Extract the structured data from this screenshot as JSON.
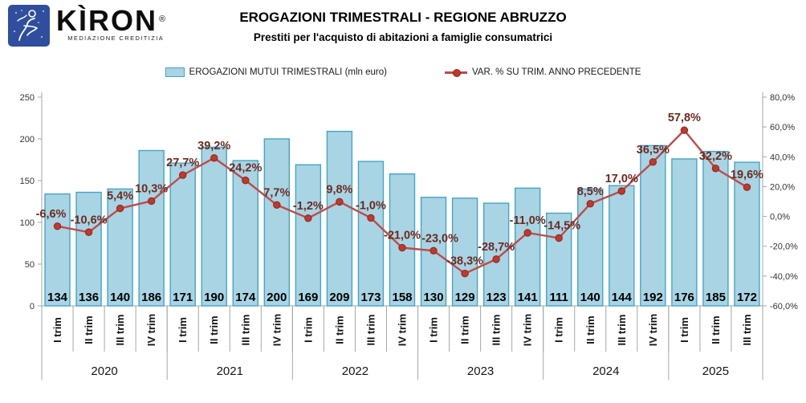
{
  "logo": {
    "brand": "KÌRON",
    "registered": "®",
    "tagline": "MEDIAZIONE CREDITIZIA"
  },
  "header": {
    "title": "EROGAZIONI TRIMESTRALI - REGIONE ABRUZZO",
    "subtitle": "Prestiti per l'acquisto di abitazioni a famiglie consumatrici"
  },
  "legend": {
    "bars_label": "EROGAZIONI MUTUI TRIMESTRALI (mln euro)",
    "line_label": "VAR. % SU TRIM. ANNO PRECEDENTE"
  },
  "chart_data": {
    "type": "bar",
    "subtype": "combo bar+line, dual axis",
    "quarter_labels": [
      "I trim",
      "II trim",
      "III trim",
      "IV trim",
      "I trim",
      "II trim",
      "III trim",
      "IV trim",
      "I trim",
      "II trim",
      "III trim",
      "IV trim",
      "I trim",
      "II trim",
      "III trim",
      "IV trim",
      "I trim",
      "II trim",
      "III trim",
      "IV trim",
      "I trim",
      "II trim",
      "III trim"
    ],
    "year_groups": [
      {
        "label": "2020",
        "count": 4
      },
      {
        "label": "2021",
        "count": 4
      },
      {
        "label": "2022",
        "count": 4
      },
      {
        "label": "2023",
        "count": 4
      },
      {
        "label": "2024",
        "count": 4
      },
      {
        "label": "2025",
        "count": 3
      }
    ],
    "series": [
      {
        "name": "EROGAZIONI MUTUI TRIMESTRALI (mln euro)",
        "type": "bar",
        "axis": "left",
        "values": [
          134,
          136,
          140,
          186,
          171,
          190,
          174,
          200,
          169,
          209,
          173,
          158,
          130,
          129,
          123,
          141,
          111,
          140,
          144,
          192,
          176,
          185,
          172
        ]
      },
      {
        "name": "VAR. % SU TRIM. ANNO PRECEDENTE",
        "type": "line",
        "axis": "right",
        "values": [
          -6.6,
          -10.6,
          5.4,
          10.3,
          27.7,
          39.2,
          24.2,
          7.7,
          -1.2,
          9.8,
          -1.0,
          -21.0,
          -23.0,
          -38.3,
          -28.7,
          -11.0,
          -14.5,
          8.5,
          17.0,
          36.5,
          57.8,
          32.2,
          19.6
        ],
        "value_labels": [
          "-6,6%",
          "-10,6%",
          "5,4%",
          "10,3%",
          "27,7%",
          "39,2%",
          "24,2%",
          "7,7%",
          "-1,2%",
          "9,8%",
          "-1,0%",
          "-21,0%",
          "-23,0%",
          "-38,3%",
          "-28,7%",
          "-11,0%",
          "-14,5%",
          "8,5%",
          "17,0%",
          "36,5%",
          "57,8%",
          "32,2%",
          "19,6%"
        ]
      }
    ],
    "left_axis": {
      "min": 0,
      "max": 250,
      "step": 50,
      "tick_labels": [
        "0",
        "50",
        "100",
        "150",
        "200",
        "250"
      ]
    },
    "right_axis": {
      "min": -60,
      "max": 80,
      "step": 20,
      "tick_labels": [
        "-60,0%",
        "-40,0%",
        "-20,0%",
        "0,0%",
        "20,0%",
        "40,0%",
        "60,0%",
        "80,0%"
      ]
    },
    "grid": false,
    "legend_position": "top",
    "colors": {
      "bar_fill": "#A8D4E4",
      "bar_stroke": "#44A5C6",
      "line": "#BE4B48",
      "marker_fill": "#C0392B",
      "marker_stroke": "#8F241D",
      "point_label": "#6E2A1F",
      "axis_line": "#A6A6A6",
      "logo_blue": "#2F4E9E"
    }
  }
}
